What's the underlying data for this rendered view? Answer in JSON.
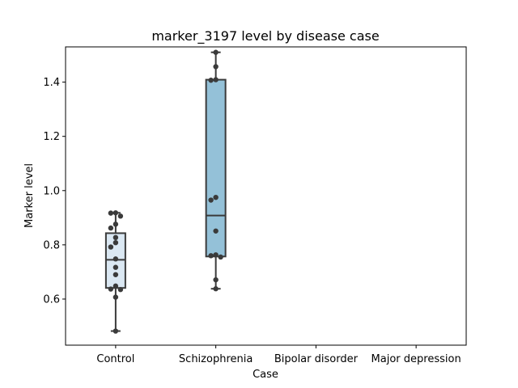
{
  "chart_data": {
    "type": "box",
    "title": "marker_3197 level by disease case",
    "xlabel": "Case",
    "ylabel": "Marker level",
    "categories": [
      "Control",
      "Schizophrenia",
      "Bipolar disorder",
      "Major depression"
    ],
    "ylim": [
      0.43,
      1.53
    ],
    "yticks": [
      "0.6",
      "0.8",
      "1.0",
      "1.2",
      "1.4"
    ],
    "grid": false,
    "colors": {
      "box_0": "#dbe8f3",
      "box_1": "#94c1d8",
      "edge": "#3a3a3a",
      "point": "#3a3a3a"
    },
    "boxes": [
      {
        "category": "Control",
        "min": 0.482,
        "q1": 0.641,
        "median": 0.745,
        "q3": 0.843,
        "max": 0.918
      },
      {
        "category": "Schizophrenia",
        "min": 0.638,
        "q1": 0.757,
        "median": 0.908,
        "q3": 1.409,
        "max": 1.51
      },
      {
        "category": "Bipolar disorder",
        "empty": true
      },
      {
        "category": "Major depression",
        "empty": true
      }
    ],
    "points": [
      {
        "category": "Control",
        "values": [
          0.918,
          0.917,
          0.906,
          0.876,
          0.862,
          0.827,
          0.808,
          0.792,
          0.748,
          0.717,
          0.69,
          0.648,
          0.637,
          0.635,
          0.607,
          0.482
        ]
      },
      {
        "category": "Schizophrenia",
        "values": [
          1.51,
          1.457,
          1.409,
          1.407,
          0.975,
          0.965,
          0.851,
          0.763,
          0.76,
          0.755,
          0.671,
          0.638
        ]
      }
    ]
  }
}
